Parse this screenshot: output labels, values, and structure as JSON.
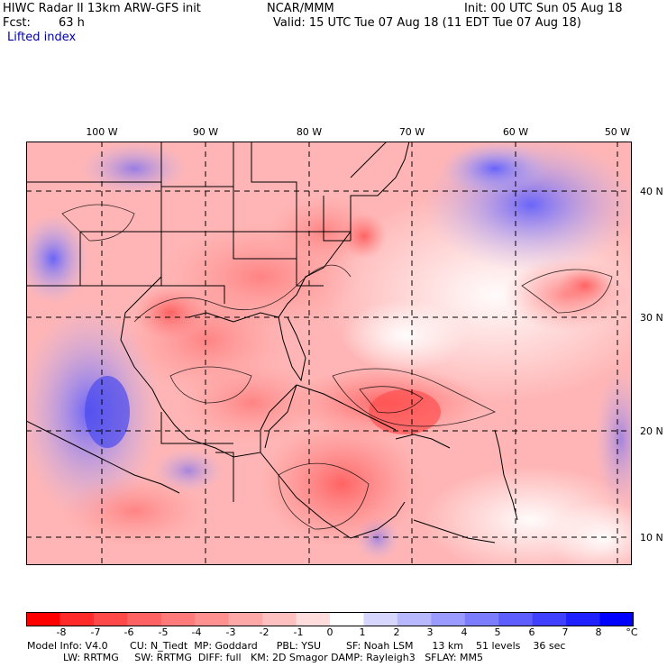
{
  "header": {
    "title": "HIWC Radar II 13km ARW-GFS init",
    "org": "NCAR/MMM",
    "init": "Init: 00 UTC Sun 05 Aug 18",
    "fcst_label": "Fcst:",
    "fcst_value": "63 h",
    "valid": "Valid: 15 UTC Tue 07 Aug 18 (11 EDT Tue 07 Aug 18)",
    "field": "Lifted index"
  },
  "map": {
    "lon_labels": [
      "100 W",
      "90 W",
      "80 W",
      "70 W",
      "60 W",
      "50 W"
    ],
    "lat_labels": [
      "40 N",
      "30 N",
      "20 N",
      "10 N"
    ]
  },
  "colorbar": {
    "labels": [
      "-8",
      "-7",
      "-6",
      "-5",
      "-4",
      "-3",
      "-2",
      "-1",
      "0",
      "1",
      "2",
      "3",
      "4",
      "5",
      "6",
      "7",
      "8"
    ],
    "unit": "°C",
    "colors": [
      "#ff0000",
      "#ff2a2a",
      "#ff4848",
      "#ff6262",
      "#ff7a7a",
      "#ff9090",
      "#ffa8a8",
      "#ffc0c0",
      "#ffdddd",
      "#ffffff",
      "#d6d6ff",
      "#b8b8ff",
      "#9a9aff",
      "#7c7cff",
      "#5e5eff",
      "#4040ff",
      "#2020ff",
      "#0000ff"
    ]
  },
  "footer": {
    "line1": "Model Info: V4.0       CU: N_Tiedt  MP: Goddard      PBL: YSU        SF: Noah LSM      13 km    51 levels    36 sec",
    "line2": "LW: RRTMG     SW: RRTMG  DIFF: full   KM: 2D Smagor DAMP: Rayleigh3   SFLAY: MM5"
  }
}
